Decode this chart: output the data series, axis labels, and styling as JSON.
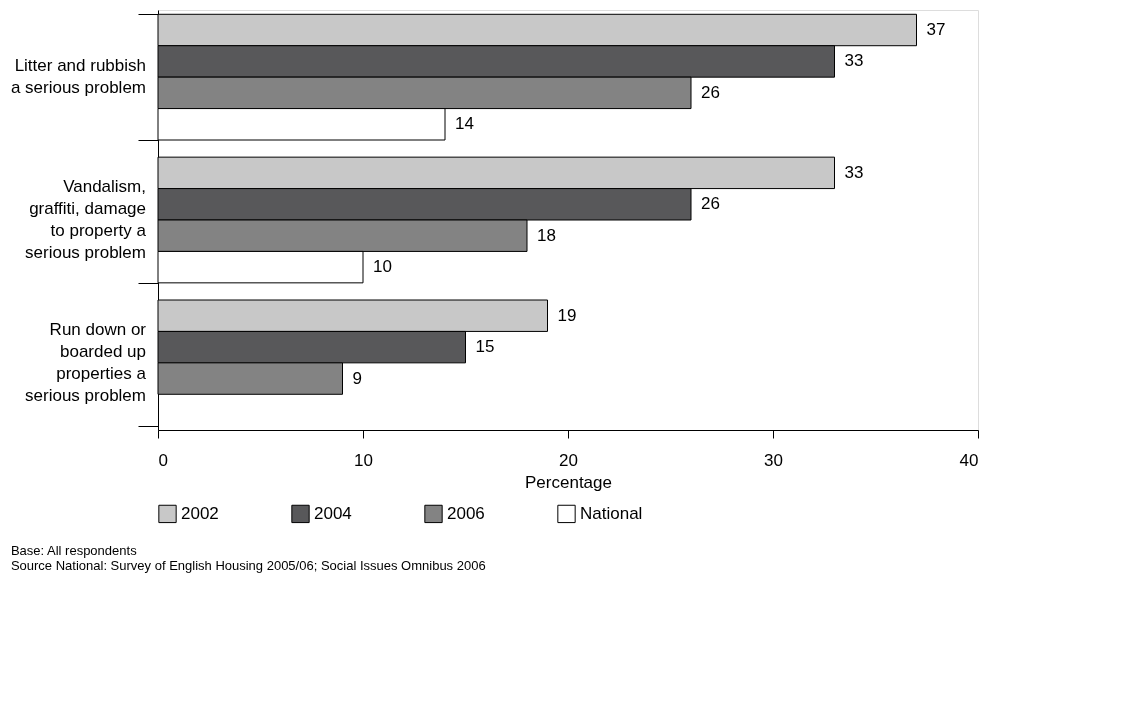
{
  "chart_data": {
    "type": "bar",
    "orientation": "horizontal",
    "categories": [
      "Litter and rubbish a serious problem",
      "Vandalism, graffiti, damage to property a serious problem",
      "Run down or boarded up properties a serious problem"
    ],
    "series": [
      {
        "name": "2002",
        "color": "#c8c8c8",
        "values": [
          37,
          33,
          19
        ]
      },
      {
        "name": "2004",
        "color": "#58585a",
        "values": [
          33,
          26,
          15
        ]
      },
      {
        "name": "2006",
        "color": "#838383",
        "values": [
          26,
          18,
          9
        ]
      },
      {
        "name": "National",
        "color": "#ffffff",
        "values": [
          14,
          10,
          null
        ]
      }
    ],
    "xlabel": "Percentage",
    "xlim": [
      0,
      40
    ],
    "xticks": [
      0,
      10,
      20,
      30,
      40
    ],
    "grid": false,
    "legend": "bottom",
    "data_labels": true,
    "annotations": [
      "Base: All respondents",
      "Source National: Survey of English Housing 2005/06; Social Issues Omnibus 2006"
    ]
  }
}
